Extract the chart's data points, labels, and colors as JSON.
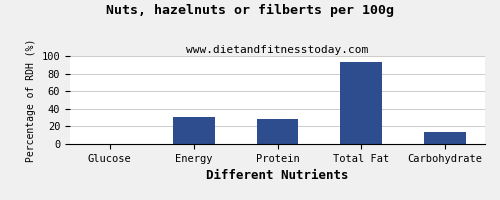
{
  "title": "Nuts, hazelnuts or filberts per 100g",
  "subtitle": "www.dietandfitnesstoday.com",
  "xlabel": "Different Nutrients",
  "ylabel": "Percentage of RDH (%)",
  "categories": [
    "Glucose",
    "Energy",
    "Protein",
    "Total Fat",
    "Carbohydrate"
  ],
  "values": [
    0,
    31,
    28,
    93,
    14
  ],
  "bar_color": "#2d4d8e",
  "ylim": [
    0,
    100
  ],
  "yticks": [
    0,
    20,
    40,
    60,
    80,
    100
  ],
  "background_color": "#f0f0f0",
  "plot_bg_color": "#ffffff",
  "title_fontsize": 9.5,
  "subtitle_fontsize": 8,
  "xlabel_fontsize": 9,
  "ylabel_fontsize": 7,
  "tick_fontsize": 7.5,
  "grid_color": "#cccccc"
}
